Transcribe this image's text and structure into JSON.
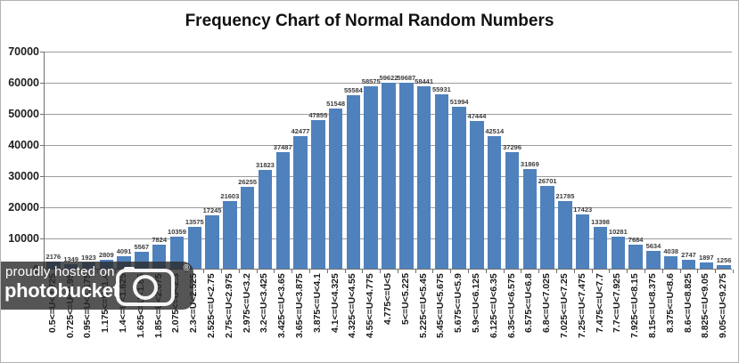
{
  "title": "Frequency Chart of Normal Random Numbers",
  "y_axis": {
    "ticks": [
      "70000",
      "60000",
      "50000",
      "40000",
      "30000",
      "20000",
      "10000",
      "0"
    ]
  },
  "chart_data": {
    "type": "bar",
    "title": "Frequency Chart of Normal Random Numbers",
    "xlabel": "",
    "ylabel": "",
    "ylim": [
      0,
      70000
    ],
    "grid": true,
    "legend": false,
    "bar_color": "#4F81BD",
    "categories": [
      "0.5<=U<0.725",
      "0.725<=U<0.95",
      "0.95<=U<1.175",
      "1.175<=U<1.4",
      "1.4<=U<1.625",
      "1.625<=U<1.85",
      "1.85<=U<2.075",
      "2.075<=U<2.3",
      "2.3<=U<2.525",
      "2.525<=U<2.75",
      "2.75<=U<2.975",
      "2.975<=U<3.2",
      "3.2<=U<3.425",
      "3.425<=U<3.65",
      "3.65<=U<3.875",
      "3.875<=U<4.1",
      "4.1<=U<4.325",
      "4.325<=U<4.55",
      "4.55<=U<4.775",
      "4.775<=U<5",
      "5<=U<5.225",
      "5.225<=U<5.45",
      "5.45<=U<5.675",
      "5.675<=U<5.9",
      "5.9<=U<6.125",
      "6.125<=U<6.35",
      "6.35<=U<6.575",
      "6.575<=U<6.8",
      "6.8<=U<7.025",
      "7.025<=U<7.25",
      "7.25<=U<7.475",
      "7.475<=U<7.7",
      "7.7<=U<7.925",
      "7.925<=U<8.15",
      "8.15<=U<8.375",
      "8.375<=U<8.6",
      "8.6<=U<8.825",
      "8.825<=U<9.05",
      "9.05<=U<9.275"
    ],
    "values": [
      2176,
      1349,
      1923,
      2809,
      4091,
      5567,
      7824,
      10359,
      13575,
      17245,
      21603,
      26255,
      31823,
      37487,
      42477,
      47855,
      51548,
      55584,
      58575,
      59622,
      59687,
      58441,
      55931,
      51994,
      47444,
      42514,
      37296,
      31869,
      26701,
      21785,
      17423,
      13398,
      10281,
      7684,
      5634,
      4038,
      2747,
      1897,
      1256
    ]
  },
  "watermark": {
    "line1": "proudly hosted on",
    "line2": "photobucket",
    "registered": "®"
  }
}
